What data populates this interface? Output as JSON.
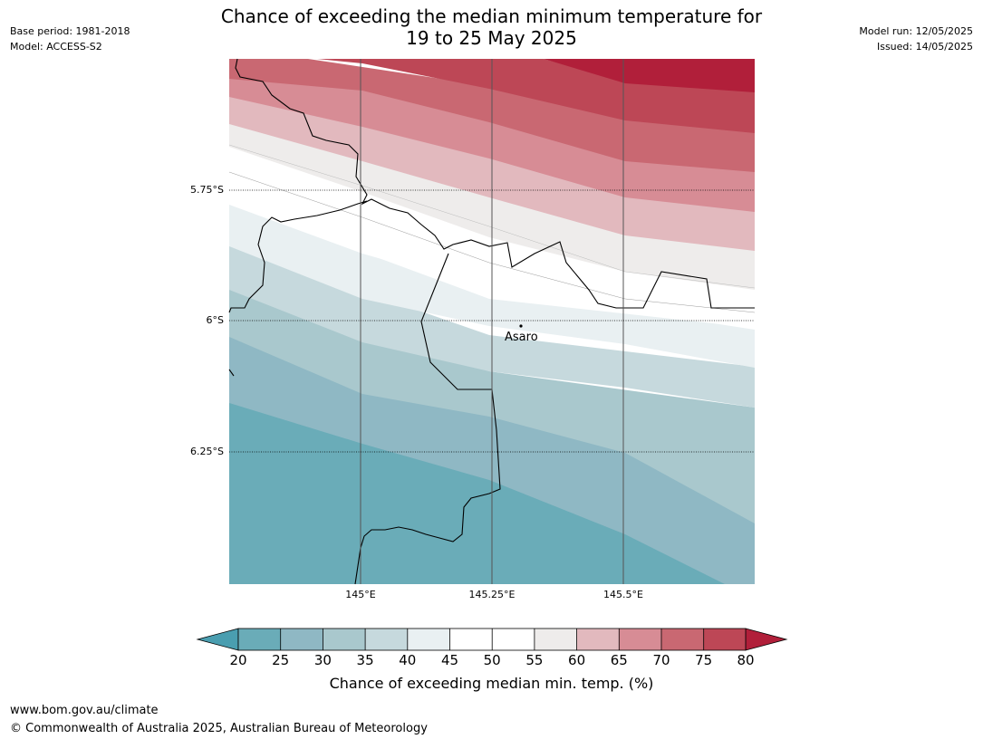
{
  "header": {
    "title_line1": "Chance of exceeding the median minimum temperature for",
    "title_line2": "19 to 25 May 2025",
    "base_period": "Base period: 1981-2018",
    "model": "Model: ACCESS-S2",
    "model_run": "Model run: 12/05/2025",
    "issued": "Issued: 14/05/2025"
  },
  "map": {
    "lat_labels": [
      "5.75°S",
      "6°S",
      "6.25°S"
    ],
    "lon_labels": [
      "145°E",
      "145.25°E",
      "145.5°E"
    ],
    "place": "Asaro"
  },
  "colorbar": {
    "label": "Chance of exceeding median min. temp. (%)",
    "ticks": [
      "20",
      "25",
      "30",
      "35",
      "40",
      "45",
      "50",
      "55",
      "60",
      "65",
      "70",
      "75",
      "80"
    ],
    "colors": [
      "#6aacb8",
      "#8fb8c4",
      "#a9c8cd",
      "#c6d9dd",
      "#e9f0f2",
      "#ffffff",
      "#ffffff",
      "#eeeceb",
      "#e2b9be",
      "#d78c95",
      "#c96872",
      "#bd4756"
    ],
    "under_color": "#4a9eb0",
    "over_color": "#b11f3a"
  },
  "footer": {
    "url": "www.bom.gov.au/climate",
    "copyright": "© Commonwealth of Australia 2025, Australian Bureau of Meteorology"
  }
}
